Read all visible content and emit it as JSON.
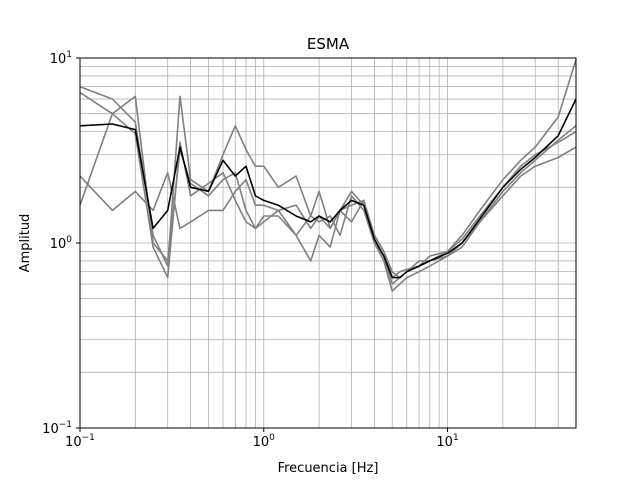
{
  "chart_data": {
    "type": "line",
    "title": "ESMA",
    "xlabel": "Frecuencia [Hz]",
    "ylabel": "Amplitud",
    "xscale": "log",
    "yscale": "log",
    "xlim": [
      0.1,
      50
    ],
    "ylim": [
      0.1,
      10
    ],
    "x_ticks": [
      {
        "value": 0.1,
        "base": "10",
        "exp": "−1"
      },
      {
        "value": 1,
        "base": "10",
        "exp": "0"
      },
      {
        "value": 10,
        "base": "10",
        "exp": "1"
      }
    ],
    "y_ticks": [
      {
        "value": 0.1,
        "base": "10",
        "exp": "−1"
      },
      {
        "value": 1,
        "base": "10",
        "exp": "0"
      },
      {
        "value": 10,
        "base": "10",
        "exp": "1"
      }
    ],
    "grid": true,
    "colors": {
      "components": "#808080",
      "mean": "#000000"
    },
    "series": [
      {
        "role": "component",
        "x": [
          0.1,
          0.15,
          0.2,
          0.25,
          0.3,
          0.35,
          0.4,
          0.5,
          0.6,
          0.7,
          0.8,
          0.9,
          1.0,
          1.2,
          1.5,
          1.8,
          2.0,
          2.3,
          2.6,
          3.0,
          3.5,
          4.0,
          4.5,
          5.0,
          5.5,
          6.0,
          7.0,
          8.0,
          10,
          12,
          15,
          20,
          25,
          30,
          40,
          50
        ],
        "y": [
          7.0,
          6.0,
          4.5,
          1.1,
          0.75,
          6.2,
          2.2,
          1.9,
          3.0,
          4.3,
          3.2,
          2.6,
          2.6,
          2.0,
          2.3,
          1.4,
          1.9,
          1.2,
          1.5,
          1.9,
          1.6,
          1.1,
          0.9,
          0.65,
          0.7,
          0.72,
          0.75,
          0.85,
          0.9,
          1.1,
          1.5,
          2.2,
          2.8,
          3.3,
          4.8,
          9.8
        ]
      },
      {
        "role": "component",
        "x": [
          0.1,
          0.15,
          0.2,
          0.25,
          0.3,
          0.35,
          0.4,
          0.5,
          0.6,
          0.7,
          0.8,
          0.9,
          1.0,
          1.2,
          1.5,
          1.8,
          2.0,
          2.3,
          2.6,
          3.0,
          3.5,
          4.0,
          4.5,
          5.0,
          5.5,
          6.0,
          7.0,
          8.0,
          10,
          12,
          15,
          20,
          25,
          30,
          40,
          50
        ],
        "y": [
          6.5,
          5.0,
          3.9,
          0.95,
          0.65,
          3.5,
          1.8,
          2.1,
          2.4,
          1.7,
          1.3,
          1.2,
          1.4,
          1.4,
          1.1,
          0.8,
          1.1,
          0.95,
          1.5,
          1.3,
          1.7,
          1.0,
          0.8,
          0.55,
          0.6,
          0.65,
          0.7,
          0.75,
          0.85,
          0.95,
          1.3,
          1.9,
          2.4,
          2.8,
          3.6,
          4.3
        ]
      },
      {
        "role": "component",
        "x": [
          0.1,
          0.15,
          0.2,
          0.25,
          0.3,
          0.35,
          0.4,
          0.5,
          0.6,
          0.7,
          0.8,
          0.9,
          1.0,
          1.2,
          1.5,
          1.8,
          2.0,
          2.3,
          2.6,
          3.0,
          3.5,
          4.0,
          4.5,
          5.0,
          5.5,
          6.0,
          7.0,
          8.0,
          10,
          12,
          15,
          20,
          25,
          30,
          40,
          50
        ],
        "y": [
          2.3,
          1.5,
          1.9,
          1.5,
          2.4,
          1.2,
          1.3,
          1.5,
          1.5,
          1.9,
          2.2,
          1.6,
          1.6,
          1.5,
          1.1,
          1.4,
          1.3,
          1.4,
          1.1,
          1.8,
          1.5,
          1.0,
          0.85,
          0.6,
          0.65,
          0.7,
          0.75,
          0.8,
          0.85,
          1.0,
          1.3,
          1.8,
          2.3,
          2.6,
          2.9,
          3.3
        ]
      },
      {
        "role": "component",
        "x": [
          0.1,
          0.15,
          0.2,
          0.25,
          0.3,
          0.35,
          0.4,
          0.5,
          0.6,
          0.7,
          0.8,
          0.9,
          1.0,
          1.2,
          1.5,
          1.8,
          2.0,
          2.3,
          2.6,
          3.0,
          3.5,
          4.0,
          4.5,
          5.0,
          5.5,
          6.0,
          7.0,
          8.0,
          10,
          12,
          15,
          20,
          25,
          30,
          40,
          50
        ],
        "y": [
          1.6,
          5.0,
          6.2,
          1.0,
          0.8,
          3.2,
          2.1,
          1.8,
          2.2,
          2.4,
          1.5,
          1.2,
          1.3,
          1.5,
          1.6,
          1.2,
          1.4,
          1.2,
          1.5,
          1.6,
          1.7,
          1.1,
          0.9,
          0.7,
          0.65,
          0.7,
          0.8,
          0.8,
          0.9,
          1.05,
          1.4,
          2.0,
          2.6,
          3.0,
          3.5,
          4.0
        ]
      },
      {
        "role": "mean",
        "x": [
          0.1,
          0.15,
          0.2,
          0.25,
          0.3,
          0.35,
          0.4,
          0.5,
          0.6,
          0.7,
          0.8,
          0.9,
          1.0,
          1.2,
          1.5,
          1.8,
          2.0,
          2.3,
          2.6,
          3.0,
          3.5,
          4.0,
          4.5,
          5.0,
          5.5,
          6.0,
          7.0,
          8.0,
          10,
          12,
          15,
          20,
          25,
          30,
          40,
          50
        ],
        "y": [
          4.3,
          4.4,
          4.1,
          1.2,
          1.5,
          3.3,
          2.0,
          1.9,
          2.8,
          2.3,
          2.6,
          1.8,
          1.7,
          1.6,
          1.4,
          1.3,
          1.4,
          1.3,
          1.5,
          1.7,
          1.6,
          1.05,
          0.85,
          0.65,
          0.65,
          0.7,
          0.75,
          0.8,
          0.88,
          1.0,
          1.35,
          2.0,
          2.5,
          2.9,
          3.8,
          6.0
        ]
      }
    ]
  }
}
